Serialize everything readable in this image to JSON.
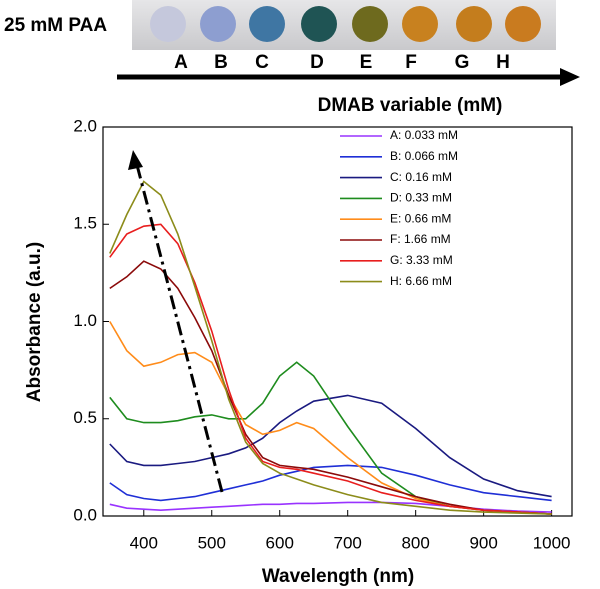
{
  "header": {
    "label": "25 mM PAA",
    "letters": [
      "A",
      "B",
      "C",
      "D",
      "E",
      "F",
      "G",
      "H"
    ]
  },
  "chart_data": {
    "type": "line",
    "legend_title": "DMAB variable (mM)",
    "x_label": "Wavelength (nm)",
    "y_label": "Absorbance (a.u.)",
    "xlim": [
      340,
      1030
    ],
    "ylim": [
      0,
      2
    ],
    "xticks": [
      400,
      500,
      600,
      700,
      800,
      900,
      1000
    ],
    "yticks": [
      {
        "value": 0,
        "label": "0.0"
      },
      0.5,
      {
        "value": 1,
        "label": "1.0"
      },
      1.5,
      {
        "value": 2,
        "label": "2.0"
      }
    ],
    "x": [
      350,
      375,
      400,
      425,
      450,
      475,
      500,
      525,
      550,
      575,
      600,
      625,
      650,
      700,
      750,
      800,
      850,
      900,
      950,
      1000
    ],
    "series": [
      {
        "name": "A: 0.033 mM",
        "color": "#9933ff",
        "values": [
          0.06,
          0.04,
          0.035,
          0.03,
          0.035,
          0.04,
          0.045,
          0.05,
          0.055,
          0.06,
          0.06,
          0.065,
          0.065,
          0.07,
          0.07,
          0.065,
          0.05,
          0.035,
          0.025,
          0.02
        ]
      },
      {
        "name": "B: 0.066 mM",
        "color": "#1f2fd6",
        "values": [
          0.17,
          0.11,
          0.09,
          0.08,
          0.09,
          0.1,
          0.12,
          0.14,
          0.16,
          0.18,
          0.21,
          0.23,
          0.25,
          0.26,
          0.25,
          0.21,
          0.16,
          0.12,
          0.1,
          0.08
        ]
      },
      {
        "name": "C: 0.16 mM",
        "color": "#1a1a80",
        "values": [
          0.37,
          0.28,
          0.26,
          0.26,
          0.27,
          0.28,
          0.3,
          0.32,
          0.35,
          0.4,
          0.48,
          0.54,
          0.59,
          0.62,
          0.58,
          0.45,
          0.3,
          0.19,
          0.13,
          0.1
        ]
      },
      {
        "name": "D: 0.33 mM",
        "color": "#1e8c1e",
        "values": [
          0.61,
          0.5,
          0.48,
          0.48,
          0.49,
          0.51,
          0.52,
          0.5,
          0.5,
          0.58,
          0.72,
          0.79,
          0.72,
          0.46,
          0.22,
          0.1,
          0.05,
          0.03,
          0.02,
          0.01
        ]
      },
      {
        "name": "E: 0.66 mM",
        "color": "#ff8c1a",
        "values": [
          1.0,
          0.85,
          0.77,
          0.79,
          0.83,
          0.84,
          0.79,
          0.62,
          0.47,
          0.42,
          0.44,
          0.48,
          0.45,
          0.3,
          0.17,
          0.09,
          0.05,
          0.03,
          0.02,
          0.01
        ]
      },
      {
        "name": "F: 1.66 mM",
        "color": "#8b0a0a",
        "values": [
          1.17,
          1.23,
          1.31,
          1.27,
          1.17,
          1.02,
          0.85,
          0.62,
          0.42,
          0.3,
          0.26,
          0.25,
          0.24,
          0.2,
          0.15,
          0.1,
          0.06,
          0.03,
          0.02,
          0.01
        ]
      },
      {
        "name": "G: 3.33 mM",
        "color": "#e81e1e",
        "values": [
          1.33,
          1.45,
          1.49,
          1.5,
          1.4,
          1.2,
          0.95,
          0.65,
          0.4,
          0.28,
          0.25,
          0.24,
          0.22,
          0.18,
          0.12,
          0.08,
          0.05,
          0.03,
          0.02,
          0.01
        ]
      },
      {
        "name": "H: 6.66 mM",
        "color": "#8c8c1a",
        "values": [
          1.35,
          1.55,
          1.72,
          1.65,
          1.45,
          1.18,
          0.9,
          0.6,
          0.38,
          0.27,
          0.22,
          0.19,
          0.16,
          0.11,
          0.07,
          0.05,
          0.03,
          0.02,
          0.015,
          0.01
        ]
      }
    ]
  }
}
